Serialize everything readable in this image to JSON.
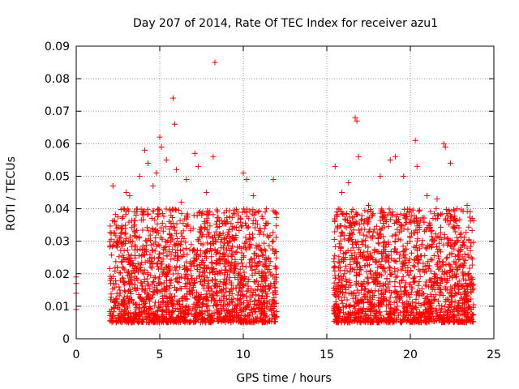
{
  "chart_data": {
    "type": "scatter",
    "title": "Day 207 of 2014, Rate Of TEC Index for receiver azu1",
    "xlabel": "GPS time / hours",
    "ylabel": "ROTI / TECUs",
    "xlim": [
      0,
      25
    ],
    "ylim": [
      0,
      0.09
    ],
    "grid": true,
    "marker": "+",
    "x_ticks": [
      0,
      5,
      10,
      15,
      20,
      25
    ],
    "x_tick_labels": [
      "0",
      "5",
      "10",
      "15",
      "20",
      "25"
    ],
    "y_ticks": [
      0,
      0.01,
      0.02,
      0.03,
      0.04,
      0.05,
      0.06,
      0.07,
      0.08,
      0.09
    ],
    "y_tick_labels": [
      "0",
      "0.01",
      "0.02",
      "0.03",
      "0.04",
      "0.05",
      "0.06",
      "0.07",
      "0.08",
      "0.09"
    ],
    "series": [
      {
        "name": "ROTI",
        "color": "#ff0000",
        "x": [
          0.0,
          0.0,
          0.0,
          0.0,
          2.2,
          2.3,
          2.4,
          2.6,
          3.0,
          3.2,
          3.5,
          3.8,
          4.1,
          4.3,
          4.6,
          4.8,
          5.0,
          5.1,
          5.4,
          5.8,
          5.9,
          6.0,
          6.3,
          6.6,
          7.1,
          7.3,
          7.8,
          8.2,
          8.3,
          8.9,
          9.5,
          10.0,
          10.2,
          10.6,
          11.0,
          11.8,
          11.9,
          15.5,
          15.9,
          16.3,
          16.7,
          16.8,
          16.9,
          17.5,
          18.2,
          18.8,
          19.1,
          19.6,
          20.3,
          20.4,
          21.0,
          21.6,
          22.0,
          22.1,
          22.4,
          22.8,
          23.4,
          23.7
        ],
        "y": [
          0.019,
          0.017,
          0.014,
          0.009,
          0.047,
          0.036,
          0.005,
          0.031,
          0.045,
          0.044,
          0.033,
          0.05,
          0.058,
          0.054,
          0.047,
          0.051,
          0.062,
          0.059,
          0.055,
          0.074,
          0.066,
          0.052,
          0.042,
          0.049,
          0.057,
          0.053,
          0.045,
          0.056,
          0.085,
          0.031,
          0.022,
          0.051,
          0.049,
          0.044,
          0.034,
          0.049,
          0.039,
          0.053,
          0.045,
          0.048,
          0.068,
          0.067,
          0.056,
          0.041,
          0.05,
          0.055,
          0.056,
          0.05,
          0.061,
          0.053,
          0.044,
          0.043,
          0.06,
          0.059,
          0.054,
          0.04,
          0.041,
          0.037
        ]
      }
    ],
    "dense_intervals_hours": [
      [
        2.0,
        12.0
      ],
      [
        15.4,
        23.8
      ]
    ],
    "typical_range": [
      0.005,
      0.04
    ]
  }
}
